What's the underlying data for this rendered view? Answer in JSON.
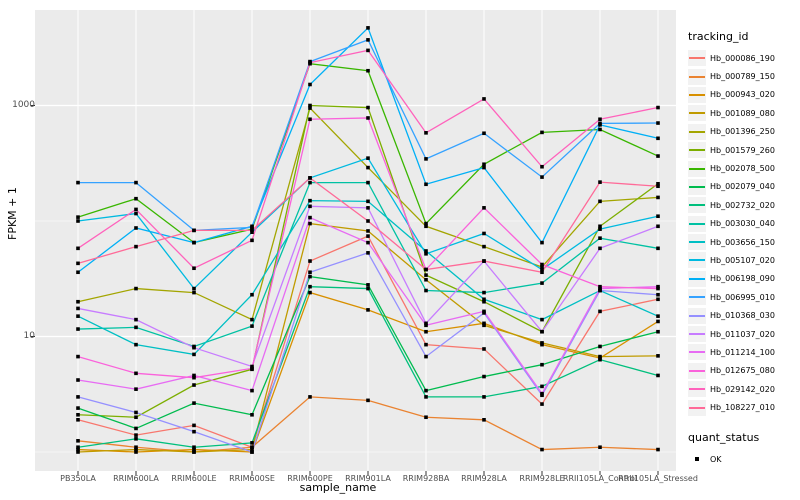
{
  "axes": {
    "y_label": "FPKM + 1",
    "x_label": "sample_name",
    "y_ticks": [
      {
        "label": "1000",
        "value": 1000
      },
      {
        "label": "10",
        "value": 10
      }
    ]
  },
  "legend": {
    "tracking_title": "tracking_id",
    "quant_title": "quant_status",
    "quant_items": [
      {
        "label": "OK",
        "marker": "black-square"
      }
    ]
  },
  "chart_data": {
    "type": "line",
    "title": "",
    "xlabel": "sample_name",
    "ylabel": "FPKM + 1",
    "y_scale": "log10",
    "y_tick_values": [
      10,
      1000
    ],
    "grid": "on",
    "legend_position": "right",
    "panel_bg": "#EBEBEB",
    "grid_color": "#FFFFFF",
    "point_color": "#000000",
    "x_categories": [
      "PB350LA",
      "RRIM600LA",
      "RRIM600LE",
      "RRIM600SE",
      "RRIM600PE",
      "RRIM901LA",
      "RRIM928BA",
      "RRIM928LA",
      "RRIM928LE",
      "RRII105LA_Control",
      "RRII105LA_Stressed"
    ],
    "series": [
      {
        "name": "Hb_000086_190",
        "color": "#F8766D",
        "values": [
          1.9,
          1.4,
          1.7,
          1.1,
          45,
          74,
          8.5,
          7.8,
          2.6,
          16.5,
          21
        ]
      },
      {
        "name": "Hb_000789_150",
        "color": "#EA8331",
        "values": [
          1.25,
          1.1,
          1.0,
          1.1,
          3.0,
          2.8,
          2.0,
          1.9,
          1.05,
          1.1,
          1.05
        ]
      },
      {
        "name": "Hb_000943_020",
        "color": "#D89000",
        "values": [
          1.05,
          1.0,
          1.05,
          1.0,
          24,
          17,
          11,
          13,
          8.5,
          6.5,
          13.5
        ]
      },
      {
        "name": "Hb_001089_080",
        "color": "#C09B00",
        "values": [
          1.0,
          1.05,
          1.0,
          1.05,
          95,
          82,
          31,
          12.5,
          8.8,
          6.7,
          6.8
        ]
      },
      {
        "name": "Hb_001396_250",
        "color": "#A3A500",
        "values": [
          20,
          26,
          24,
          14,
          950,
          290,
          90,
          60,
          40,
          148,
          160
        ]
      },
      {
        "name": "Hb_001579_260",
        "color": "#7CAE00",
        "values": [
          2.1,
          2.0,
          3.8,
          5.2,
          1000,
          960,
          34,
          20,
          11,
          90,
          210
        ]
      },
      {
        "name": "Hb_002078_500",
        "color": "#39B600",
        "values": [
          108,
          156,
          65,
          85,
          2300,
          2000,
          95,
          310,
          585,
          620,
          365
        ]
      },
      {
        "name": "Hb_002079_040",
        "color": "#00BB4E",
        "values": [
          2.4,
          1.6,
          2.65,
          2.1,
          33,
          28,
          3.4,
          4.5,
          5.7,
          8.2,
          11
        ]
      },
      {
        "name": "Hb_002732_020",
        "color": "#00BF7D",
        "values": [
          1.1,
          1.3,
          1.1,
          1.2,
          27,
          26,
          3.0,
          3.0,
          3.7,
          6.3,
          4.6
        ]
      },
      {
        "name": "Hb_003030_040",
        "color": "#00C1A3",
        "values": [
          11.6,
          12,
          8.2,
          12.3,
          215,
          215,
          25,
          24,
          29,
          71,
          58
        ]
      },
      {
        "name": "Hb_003656_150",
        "color": "#00BFC4",
        "values": [
          15,
          8.5,
          7.0,
          23,
          150,
          148,
          55,
          21,
          14,
          25,
          15
        ]
      },
      {
        "name": "Hb_005107_020",
        "color": "#00BAE0",
        "values": [
          100,
          116,
          26,
          80,
          236,
          350,
          52,
          78,
          38,
          85,
          110
        ]
      },
      {
        "name": "Hb_006198_090",
        "color": "#00B0F6",
        "values": [
          36,
          87,
          65,
          90,
          1520,
          4700,
          208,
          290,
          65,
          680,
          520
        ]
      },
      {
        "name": "Hb_006995_010",
        "color": "#35A2FF",
        "values": [
          215,
          215,
          83,
          88,
          2400,
          3700,
          345,
          575,
          240,
          700,
          705
        ]
      },
      {
        "name": "Hb_010368_030",
        "color": "#9590FF",
        "values": [
          3.0,
          2.2,
          1.5,
          1.0,
          36,
          53,
          6.7,
          16,
          3.1,
          25,
          23
        ]
      },
      {
        "name": "Hb_011037_020",
        "color": "#C77CFF",
        "values": [
          17.5,
          14,
          8.0,
          5.5,
          134,
          130,
          13,
          45,
          11,
          58,
          90
        ]
      },
      {
        "name": "Hb_011214_100",
        "color": "#E76BF3",
        "values": [
          4.2,
          3.5,
          4.6,
          3.4,
          107,
          65,
          12.5,
          16.5,
          3.2,
          26,
          27
        ]
      },
      {
        "name": "Hb_012675_080",
        "color": "#FA62DB",
        "values": [
          6.7,
          4.8,
          4.4,
          5.3,
          760,
          780,
          38,
          130,
          42,
          27,
          26
        ]
      },
      {
        "name": "Hb_029142_020",
        "color": "#FF62BC",
        "values": [
          58,
          126,
          39,
          68,
          2350,
          3000,
          580,
          1140,
          295,
          760,
          960
        ]
      },
      {
        "name": "Hb_108227_010",
        "color": "#FF6A98",
        "values": [
          43,
          60,
          83,
          83,
          236,
          100,
          38,
          45,
          36,
          217,
          200
        ]
      }
    ]
  }
}
